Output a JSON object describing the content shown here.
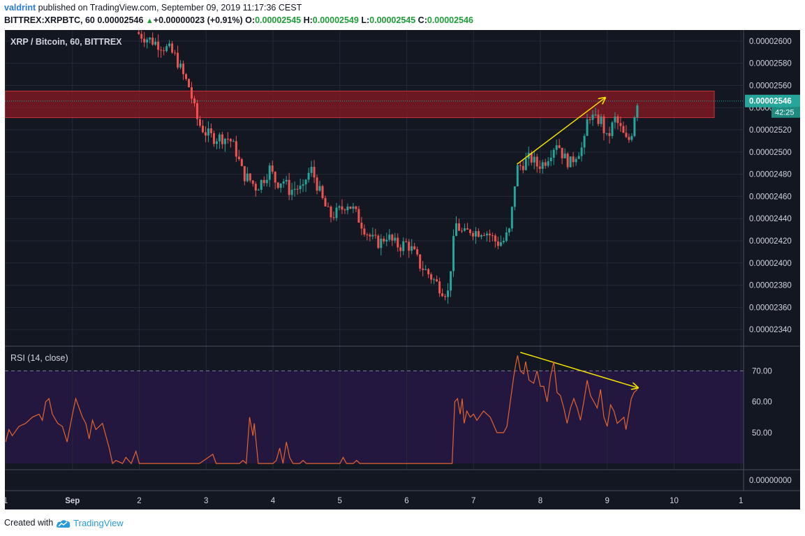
{
  "header": {
    "author": "valdrint",
    "published_text": "published on TradingView.com, September 09, 2019 11:17:36 CEST",
    "symbol": "BITTREX:XRPBTC, 60",
    "last": "0.00002546",
    "change": "+0.00000023 (+0.91%)",
    "open_label": "O:",
    "open": "0.00002545",
    "high_label": "H:",
    "high": "0.00002549",
    "low_label": "L:",
    "low": "0.00002545",
    "close_label": "C:",
    "close": "0.00002546"
  },
  "footer": {
    "created_with": "Created with",
    "brand": "TradingView"
  },
  "colors": {
    "up": "#26a69a",
    "down": "#ef5350",
    "rsi_line": "#e4642e",
    "trend_arrow": "#f5e400",
    "resistance_zone": "#8b1a24",
    "background": "#131722"
  },
  "chart_data": [
    {
      "type": "candlestick",
      "title": "XRP / Bitcoin, 60, BITTREX",
      "ylim": [
        2.325e-05,
        2.61e-05
      ],
      "y_ticks": [
        "0.00002600",
        "0.00002580",
        "0.00002560",
        "0.00002540",
        "0.00002520",
        "0.00002500",
        "0.00002480",
        "0.00002460",
        "0.00002440",
        "0.00002420",
        "0.00002400",
        "0.00002380",
        "0.00002360",
        "0.00002340"
      ],
      "x_ticks": [
        {
          "label": "1",
          "day": 1
        },
        {
          "label": "Sep",
          "day": 2
        },
        {
          "label": "2",
          "day": 3
        },
        {
          "label": "3",
          "day": 4
        },
        {
          "label": "4",
          "day": 5
        },
        {
          "label": "5",
          "day": 6
        },
        {
          "label": "6",
          "day": 7
        },
        {
          "label": "7",
          "day": 8
        },
        {
          "label": "8",
          "day": 9
        },
        {
          "label": "9",
          "day": 10
        },
        {
          "label": "10",
          "day": 11
        },
        {
          "label": "1",
          "day": 12
        }
      ],
      "last_price_label": "0.00002546",
      "countdown_label": "42:25",
      "last_price": 2.546e-05,
      "resistance_zone": [
        2.531e-05,
        2.555e-05
      ],
      "close_path": [
        [
          2.95,
          2.608e-05
        ],
        [
          3.1,
          2.603e-05
        ],
        [
          3.3,
          2.597e-05
        ],
        [
          3.45,
          2.592e-05
        ],
        [
          3.55,
          2.585e-05
        ],
        [
          3.65,
          2.57e-05
        ],
        [
          3.75,
          2.558e-05
        ],
        [
          3.85,
          2.532e-05
        ],
        [
          3.9,
          2.525e-05
        ],
        [
          4.0,
          2.517e-05
        ],
        [
          4.1,
          2.513e-05
        ],
        [
          4.25,
          2.513e-05
        ],
        [
          4.35,
          2.512e-05
        ],
        [
          4.45,
          2.5e-05
        ],
        [
          4.55,
          2.48e-05
        ],
        [
          4.65,
          2.475e-05
        ],
        [
          4.75,
          2.468e-05
        ],
        [
          4.85,
          2.475e-05
        ],
        [
          4.95,
          2.485e-05
        ],
        [
          5.05,
          2.472e-05
        ],
        [
          5.15,
          2.475e-05
        ],
        [
          5.25,
          2.465e-05
        ],
        [
          5.35,
          2.468e-05
        ],
        [
          5.45,
          2.465e-05
        ],
        [
          5.5,
          2.478e-05
        ],
        [
          5.58,
          2.484e-05
        ],
        [
          5.65,
          2.472e-05
        ],
        [
          5.75,
          2.455e-05
        ],
        [
          5.85,
          2.442e-05
        ],
        [
          5.95,
          2.445e-05
        ],
        [
          6.05,
          2.45e-05
        ],
        [
          6.1,
          2.455e-05
        ],
        [
          6.2,
          2.448e-05
        ],
        [
          6.3,
          2.438e-05
        ],
        [
          6.4,
          2.428e-05
        ],
        [
          6.5,
          2.42e-05
        ],
        [
          6.6,
          2.418e-05
        ],
        [
          6.7,
          2.425e-05
        ],
        [
          6.8,
          2.418e-05
        ],
        [
          6.9,
          2.415e-05
        ],
        [
          7.0,
          2.418e-05
        ],
        [
          7.1,
          2.41e-05
        ],
        [
          7.2,
          2.398e-05
        ],
        [
          7.3,
          2.392e-05
        ],
        [
          7.4,
          2.385e-05
        ],
        [
          7.5,
          2.378e-05
        ],
        [
          7.55,
          2.375e-05
        ],
        [
          7.62,
          2.373e-05
        ],
        [
          7.68,
          2.41e-05
        ],
        [
          7.74,
          2.435e-05
        ],
        [
          7.8,
          2.43e-05
        ],
        [
          7.85,
          2.425e-05
        ],
        [
          7.95,
          2.43e-05
        ],
        [
          8.05,
          2.428e-05
        ],
        [
          8.15,
          2.43e-05
        ],
        [
          8.25,
          2.425e-05
        ],
        [
          8.35,
          2.418e-05
        ],
        [
          8.45,
          2.42e-05
        ],
        [
          8.55,
          2.43e-05
        ],
        [
          8.6,
          2.465e-05
        ],
        [
          8.65,
          2.485e-05
        ],
        [
          8.75,
          2.49e-05
        ],
        [
          8.85,
          2.495e-05
        ],
        [
          8.95,
          2.488e-05
        ],
        [
          9.05,
          2.49e-05
        ],
        [
          9.15,
          2.5e-05
        ],
        [
          9.25,
          2.51e-05
        ],
        [
          9.35,
          2.495e-05
        ],
        [
          9.45,
          2.49e-05
        ],
        [
          9.55,
          2.5e-05
        ],
        [
          9.65,
          2.505e-05
        ],
        [
          9.68,
          2.52e-05
        ],
        [
          9.72,
          2.535e-05
        ],
        [
          9.82,
          2.528e-05
        ],
        [
          9.9,
          2.53e-05
        ],
        [
          10.0,
          2.51e-05
        ],
        [
          10.05,
          2.52e-05
        ],
        [
          10.12,
          2.53e-05
        ],
        [
          10.22,
          2.518e-05
        ],
        [
          10.28,
          2.51e-05
        ],
        [
          10.35,
          2.512e-05
        ],
        [
          10.4,
          2.532e-05
        ],
        [
          10.45,
          2.546e-05
        ]
      ],
      "trend_arrow": [
        [
          8.65,
          2.489e-05
        ],
        [
          9.97,
          2.549e-05
        ]
      ]
    },
    {
      "type": "line",
      "title": "RSI (14, close)",
      "ylim": [
        38,
        78
      ],
      "y_ticks": [
        "70.00",
        "60.00",
        "50.00"
      ],
      "zero_label": "0.00000000",
      "overbought": 70,
      "oversold": 40,
      "series": [
        {
          "values": [
            [
              1.0,
              47
            ],
            [
              1.05,
              51
            ],
            [
              1.1,
              49
            ],
            [
              1.2,
              52
            ],
            [
              1.3,
              53
            ],
            [
              1.4,
              55
            ],
            [
              1.5,
              56
            ],
            [
              1.55,
              54
            ],
            [
              1.6,
              60
            ],
            [
              1.65,
              61
            ],
            [
              1.7,
              56
            ],
            [
              1.78,
              53
            ],
            [
              1.85,
              52
            ],
            [
              1.92,
              47
            ],
            [
              2.0,
              56
            ],
            [
              2.05,
              61
            ],
            [
              2.1,
              58
            ],
            [
              2.15,
              55
            ],
            [
              2.2,
              53
            ],
            [
              2.25,
              48
            ],
            [
              2.3,
              54
            ],
            [
              2.35,
              51
            ],
            [
              2.45,
              53
            ],
            [
              2.55,
              45
            ],
            [
              2.6,
              40
            ],
            [
              2.65,
              41
            ],
            [
              2.75,
              40
            ],
            [
              2.8,
              42
            ],
            [
              2.88,
              40
            ],
            [
              2.95,
              44
            ],
            [
              3.0,
              40
            ],
            [
              3.9,
              40
            ],
            [
              4.1,
              43
            ],
            [
              4.15,
              40
            ],
            [
              4.5,
              40
            ],
            [
              4.55,
              41
            ],
            [
              4.6,
              40
            ],
            [
              4.65,
              55
            ],
            [
              4.7,
              49
            ],
            [
              4.72,
              53
            ],
            [
              4.78,
              40
            ],
            [
              5.0,
              40
            ],
            [
              5.05,
              41
            ],
            [
              5.1,
              45
            ],
            [
              5.15,
              40
            ],
            [
              5.2,
              47
            ],
            [
              5.25,
              42
            ],
            [
              5.3,
              40
            ],
            [
              5.4,
              40
            ],
            [
              5.45,
              41
            ],
            [
              5.5,
              40
            ],
            [
              6.0,
              40
            ],
            [
              6.05,
              42
            ],
            [
              6.1,
              40
            ],
            [
              6.2,
              40
            ],
            [
              6.25,
              41
            ],
            [
              6.3,
              40
            ],
            [
              7.68,
              40
            ],
            [
              7.72,
              60
            ],
            [
              7.76,
              61
            ],
            [
              7.8,
              56
            ],
            [
              7.83,
              61
            ],
            [
              7.86,
              53
            ],
            [
              7.9,
              57
            ],
            [
              7.95,
              55
            ],
            [
              8.0,
              56
            ],
            [
              8.05,
              54
            ],
            [
              8.15,
              57
            ],
            [
              8.25,
              55
            ],
            [
              8.35,
              50
            ],
            [
              8.45,
              50
            ],
            [
              8.5,
              52
            ],
            [
              8.55,
              60
            ],
            [
              8.6,
              68
            ],
            [
              8.63,
              72
            ],
            [
              8.66,
              75
            ],
            [
              8.7,
              70
            ],
            [
              8.75,
              69
            ],
            [
              8.78,
              73
            ],
            [
              8.83,
              67
            ],
            [
              8.9,
              66
            ],
            [
              8.95,
              70
            ],
            [
              9.0,
              65
            ],
            [
              9.05,
              65
            ],
            [
              9.1,
              60
            ],
            [
              9.15,
              68
            ],
            [
              9.2,
              73
            ],
            [
              9.25,
              63
            ],
            [
              9.3,
              62
            ],
            [
              9.35,
              58
            ],
            [
              9.4,
              53
            ],
            [
              9.45,
              58
            ],
            [
              9.5,
              61
            ],
            [
              9.55,
              58
            ],
            [
              9.6,
              54
            ],
            [
              9.65,
              60
            ],
            [
              9.7,
              67
            ],
            [
              9.75,
              62
            ],
            [
              9.8,
              60
            ],
            [
              9.85,
              58
            ],
            [
              9.9,
              64
            ],
            [
              9.95,
              55
            ],
            [
              10.0,
              52
            ],
            [
              10.05,
              59
            ],
            [
              10.1,
              57
            ],
            [
              10.15,
              53
            ],
            [
              10.2,
              54
            ],
            [
              10.25,
              55
            ],
            [
              10.28,
              51
            ],
            [
              10.32,
              56
            ],
            [
              10.36,
              61
            ],
            [
              10.4,
              63
            ],
            [
              10.45,
              64
            ]
          ]
        }
      ],
      "trend_arrow": [
        [
          8.7,
          76
        ],
        [
          10.46,
          64.5
        ]
      ]
    }
  ]
}
